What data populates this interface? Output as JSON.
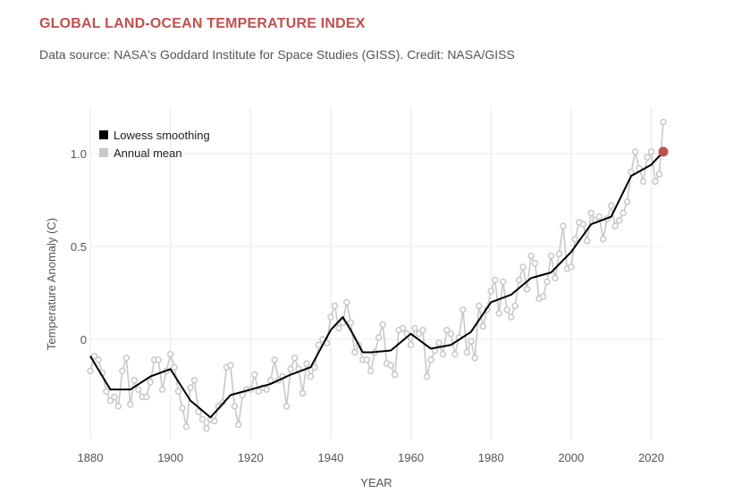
{
  "header": {
    "title": "GLOBAL LAND-OCEAN TEMPERATURE INDEX",
    "subtitle": "Data source: NASA's Goddard Institute for Space Studies (GISS). Credit: NASA/GISS"
  },
  "colors": {
    "title": "#c0504d",
    "annual_mean": "#c8c8c8",
    "smoothing": "#000000",
    "latest_marker": "#c0504d",
    "grid": "#e8e8e8"
  },
  "chart_data": {
    "type": "line",
    "xlabel": "YEAR",
    "ylabel": "Temperature Anomaly (C)",
    "xlim": [
      1880,
      2023
    ],
    "ylim": [
      -0.55,
      1.2
    ],
    "xticks": [
      1880,
      1900,
      1920,
      1940,
      1960,
      1980,
      2000,
      2020
    ],
    "yticks": [
      0,
      0.5,
      1.0
    ],
    "ytick_labels": [
      "0",
      "0.5",
      "1.0"
    ],
    "grid": true,
    "legend_position": "top-left",
    "legend": [
      "Lowess smoothing",
      "Annual mean"
    ],
    "series": [
      {
        "name": "Annual mean",
        "style": "line-with-markers",
        "x": [
          1880,
          1881,
          1882,
          1883,
          1884,
          1885,
          1886,
          1887,
          1888,
          1889,
          1890,
          1891,
          1892,
          1893,
          1894,
          1895,
          1896,
          1897,
          1898,
          1899,
          1900,
          1901,
          1902,
          1903,
          1904,
          1905,
          1906,
          1907,
          1908,
          1909,
          1910,
          1911,
          1912,
          1913,
          1914,
          1915,
          1916,
          1917,
          1918,
          1919,
          1920,
          1921,
          1922,
          1923,
          1924,
          1925,
          1926,
          1927,
          1928,
          1929,
          1930,
          1931,
          1932,
          1933,
          1934,
          1935,
          1936,
          1937,
          1938,
          1939,
          1940,
          1941,
          1942,
          1943,
          1944,
          1945,
          1946,
          1947,
          1948,
          1949,
          1950,
          1951,
          1952,
          1953,
          1954,
          1955,
          1956,
          1957,
          1958,
          1959,
          1960,
          1961,
          1962,
          1963,
          1964,
          1965,
          1966,
          1967,
          1968,
          1969,
          1970,
          1971,
          1972,
          1973,
          1974,
          1975,
          1976,
          1977,
          1978,
          1979,
          1980,
          1981,
          1982,
          1983,
          1984,
          1985,
          1986,
          1987,
          1988,
          1989,
          1990,
          1991,
          1992,
          1993,
          1994,
          1995,
          1996,
          1997,
          1998,
          1999,
          2000,
          2001,
          2002,
          2003,
          2004,
          2005,
          2006,
          2007,
          2008,
          2009,
          2010,
          2011,
          2012,
          2013,
          2014,
          2015,
          2016,
          2017,
          2018,
          2019,
          2020,
          2021,
          2022,
          2023
        ],
        "y": [
          -0.17,
          -0.09,
          -0.11,
          -0.18,
          -0.28,
          -0.33,
          -0.31,
          -0.36,
          -0.17,
          -0.1,
          -0.35,
          -0.22,
          -0.27,
          -0.31,
          -0.31,
          -0.23,
          -0.11,
          -0.11,
          -0.27,
          -0.17,
          -0.08,
          -0.15,
          -0.28,
          -0.37,
          -0.47,
          -0.26,
          -0.22,
          -0.39,
          -0.43,
          -0.48,
          -0.43,
          -0.44,
          -0.36,
          -0.34,
          -0.15,
          -0.14,
          -0.36,
          -0.46,
          -0.3,
          -0.27,
          -0.27,
          -0.19,
          -0.28,
          -0.26,
          -0.27,
          -0.22,
          -0.11,
          -0.22,
          -0.2,
          -0.36,
          -0.16,
          -0.1,
          -0.16,
          -0.29,
          -0.13,
          -0.2,
          -0.15,
          -0.03,
          0.0,
          -0.02,
          0.12,
          0.18,
          0.06,
          0.09,
          0.2,
          0.09,
          -0.07,
          -0.03,
          -0.11,
          -0.11,
          -0.17,
          -0.07,
          0.01,
          0.08,
          -0.13,
          -0.14,
          -0.19,
          0.05,
          0.06,
          0.03,
          -0.03,
          0.06,
          0.03,
          0.05,
          -0.2,
          -0.11,
          -0.06,
          -0.02,
          -0.08,
          0.05,
          0.03,
          -0.08,
          0.01,
          0.16,
          -0.07,
          -0.01,
          -0.1,
          0.18,
          0.07,
          0.16,
          0.26,
          0.32,
          0.14,
          0.31,
          0.16,
          0.12,
          0.18,
          0.32,
          0.39,
          0.27,
          0.45,
          0.41,
          0.22,
          0.23,
          0.31,
          0.45,
          0.33,
          0.46,
          0.61,
          0.38,
          0.39,
          0.54,
          0.63,
          0.62,
          0.53,
          0.68,
          0.64,
          0.66,
          0.54,
          0.65,
          0.72,
          0.61,
          0.64,
          0.68,
          0.74,
          0.9,
          1.01,
          0.92,
          0.85,
          0.98,
          1.01,
          0.85,
          0.89,
          1.17
        ]
      },
      {
        "name": "Lowess smoothing",
        "style": "line",
        "x": [
          1880,
          1885,
          1890,
          1895,
          1900,
          1905,
          1910,
          1915,
          1920,
          1925,
          1930,
          1935,
          1940,
          1943,
          1945,
          1948,
          1950,
          1955,
          1960,
          1965,
          1970,
          1975,
          1980,
          1985,
          1990,
          1995,
          2000,
          2005,
          2010,
          2015,
          2020,
          2023
        ],
        "y": [
          -0.09,
          -0.27,
          -0.27,
          -0.2,
          -0.16,
          -0.33,
          -0.42,
          -0.3,
          -0.27,
          -0.24,
          -0.19,
          -0.15,
          0.05,
          0.12,
          0.05,
          -0.07,
          -0.07,
          -0.06,
          0.03,
          -0.05,
          -0.03,
          0.04,
          0.2,
          0.24,
          0.33,
          0.36,
          0.47,
          0.62,
          0.66,
          0.88,
          0.94,
          1.01
        ]
      }
    ],
    "highlight_point": {
      "x": 2023,
      "y": 1.01
    }
  }
}
